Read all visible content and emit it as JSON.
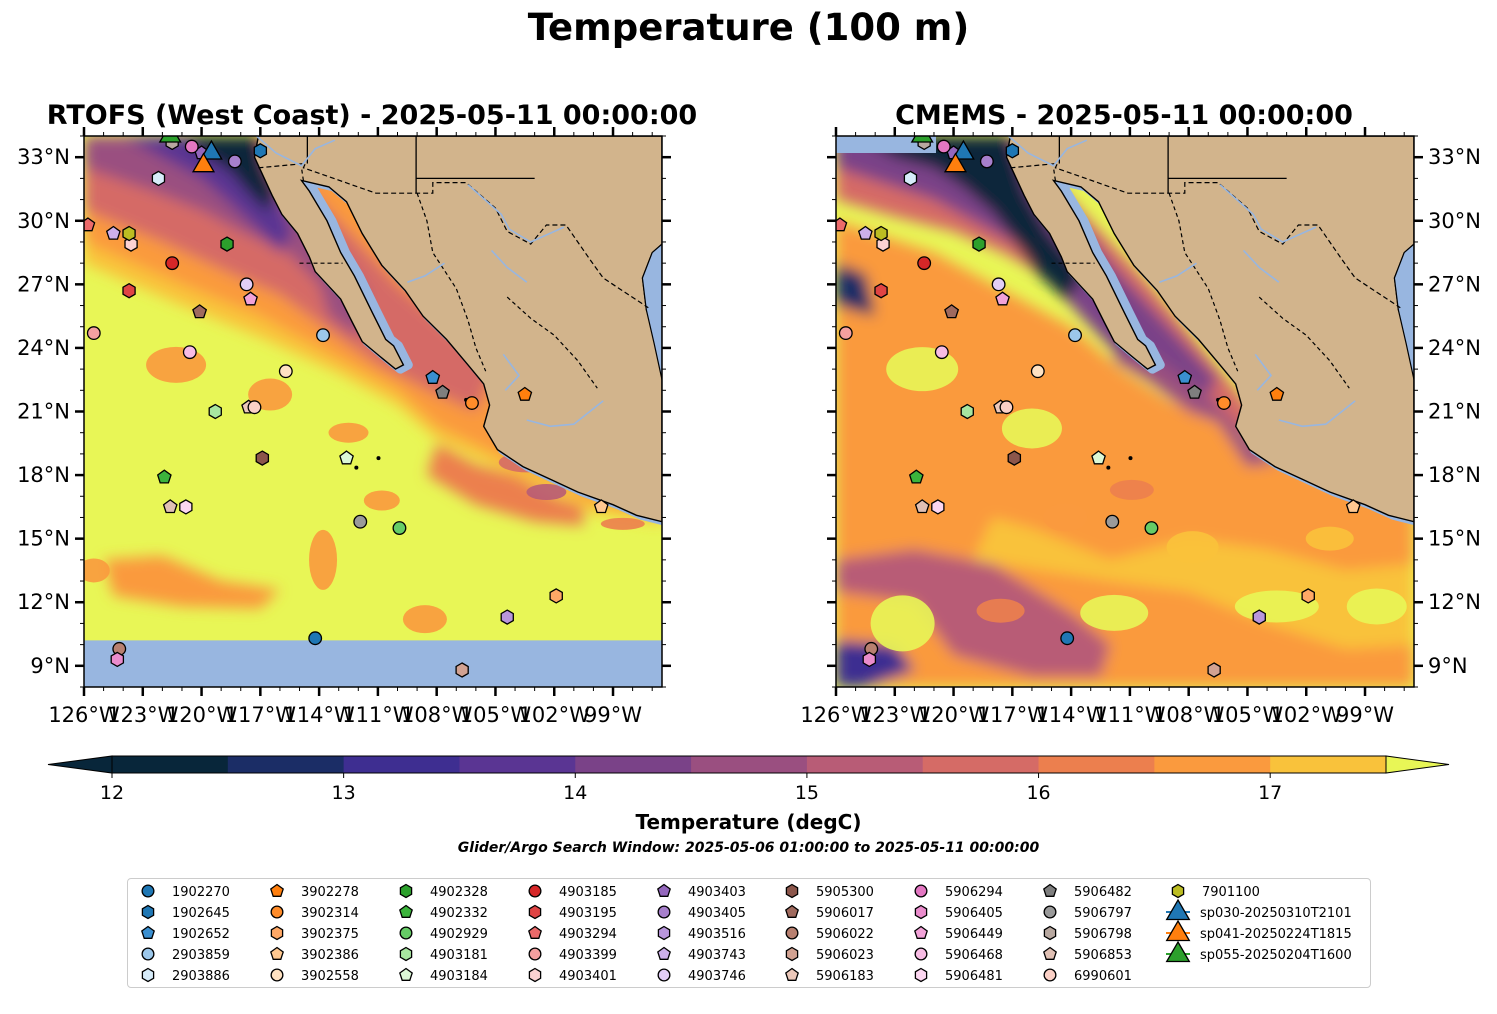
{
  "figure": {
    "suptitle": "Temperature (100 m)",
    "colorbar_label": "Temperature (degC)",
    "search_window": "Glider/Argo Search Window: 2025-05-06 01:00:00 to 2025-05-11 00:00:00"
  },
  "chart_data": [
    {
      "type": "heatmap",
      "title": "RTOFS (West Coast) - 2025-05-11 00:00:00",
      "projection": "map",
      "xlim": [
        -126,
        -96.5
      ],
      "ylim": [
        8,
        34
      ],
      "xticks": [
        "126°W",
        "123°W",
        "120°W",
        "117°W",
        "114°W",
        "111°W",
        "108°W",
        "105°W",
        "102°W",
        "99°W"
      ],
      "yticks": [
        "9°N",
        "12°N",
        "15°N",
        "18°N",
        "21°N",
        "24°N",
        "27°N",
        "30°N",
        "33°N"
      ],
      "land_color": "#d2b48c",
      "no_data_band_color": "#98b6e0",
      "no_data_band_below_lat": 10.2
    },
    {
      "type": "heatmap",
      "title": "CMEMS - 2025-05-11 00:00:00",
      "projection": "map",
      "xlim": [
        -126,
        -96.5
      ],
      "ylim": [
        8,
        34
      ],
      "xticks": [
        "126°W",
        "123°W",
        "120°W",
        "117°W",
        "114°W",
        "111°W",
        "108°W",
        "105°W",
        "102°W",
        "99°W"
      ],
      "yticks": [
        "9°N",
        "12°N",
        "15°N",
        "18°N",
        "21°N",
        "24°N",
        "27°N",
        "30°N",
        "33°N"
      ],
      "land_color": "#d2b48c"
    }
  ],
  "colorbar": {
    "ticks": [
      "12",
      "13",
      "14",
      "15",
      "16",
      "17"
    ],
    "min": 12,
    "max": 17.5,
    "step": 0.5,
    "extend": "both",
    "colors": [
      "#08263a",
      "#1b2d66",
      "#3e2e91",
      "#5a3593",
      "#7a4288",
      "#9a4f80",
      "#b85c76",
      "#d56b66",
      "#ec7f4e",
      "#fa9a3e",
      "#f9c23b",
      "#e8f656"
    ]
  },
  "legend": {
    "columns": [
      [
        [
          "1902270",
          "o",
          "#1f77b4"
        ],
        [
          "1902645",
          "h",
          "#1f77b4"
        ],
        [
          "1902652",
          "p",
          "#3a8fd0"
        ],
        [
          "2903859",
          "o",
          "#9cc7ea"
        ],
        [
          "2903886",
          "h",
          "#d7ecfa"
        ]
      ],
      [
        [
          "3902278",
          "p",
          "#ff7f0e"
        ],
        [
          "3902314",
          "o",
          "#ff8c2a"
        ],
        [
          "3902375",
          "h",
          "#ffa866"
        ],
        [
          "3902386",
          "p",
          "#ffc890"
        ],
        [
          "3902558",
          "o",
          "#ffe2c2"
        ]
      ],
      [
        [
          "4902328",
          "h",
          "#2ca02c"
        ],
        [
          "4902332",
          "p",
          "#3cb43c"
        ],
        [
          "4902929",
          "o",
          "#66cc66"
        ],
        [
          "4903181",
          "h",
          "#a8e6a0"
        ],
        [
          "4903184",
          "p",
          "#dcf8d6"
        ]
      ],
      [
        [
          "4903185",
          "o",
          "#d62728"
        ],
        [
          "4903195",
          "h",
          "#e04444"
        ],
        [
          "4903294",
          "p",
          "#ec6a6a"
        ],
        [
          "4903399",
          "o",
          "#f4a0a0"
        ],
        [
          "4903401",
          "h",
          "#fcd2d2"
        ]
      ],
      [
        [
          "4903403",
          "p",
          "#9467bd"
        ],
        [
          "4903405",
          "o",
          "#a77fcc"
        ],
        [
          "4903516",
          "h",
          "#b996dc"
        ],
        [
          "4903743",
          "p",
          "#cdb0ea"
        ],
        [
          "4903746",
          "o",
          "#e2cdf6"
        ]
      ],
      [
        [
          "5905300",
          "h",
          "#8c564b"
        ],
        [
          "5906017",
          "p",
          "#a06a5e"
        ],
        [
          "5906022",
          "o",
          "#b88070"
        ],
        [
          "5906023",
          "h",
          "#d2a292"
        ],
        [
          "5906183",
          "p",
          "#ecc8ba"
        ]
      ],
      [
        [
          "5906294",
          "o",
          "#e377c2"
        ],
        [
          "5906405",
          "h",
          "#ea8ccc"
        ],
        [
          "5906449",
          "p",
          "#f2a2d8"
        ],
        [
          "5906468",
          "o",
          "#f8bce4"
        ],
        [
          "5906481",
          "h",
          "#fcd6f0"
        ]
      ],
      [
        [
          "5906482",
          "p",
          "#7f7f7f"
        ],
        [
          "5906797",
          "o",
          "#9a9a9a"
        ],
        [
          "5906798",
          "h",
          "#b8a8a0"
        ],
        [
          "5906853",
          "p",
          "#e0c0b4"
        ],
        [
          "6990601",
          "o",
          "#fbd0c6"
        ]
      ],
      [
        [
          "7901100",
          "h",
          "#bcbd22"
        ],
        [
          "sp030-20250310T2101",
          "^",
          "#1f77b4"
        ],
        [
          "sp041-20250224T1815",
          "^",
          "#ff7f0e"
        ],
        [
          "sp055-20250204T1600",
          "^",
          "#2ca02c"
        ]
      ]
    ]
  },
  "platforms": [
    [
      "1902270",
      "o",
      "#1f77b4",
      -114.2,
      10.3
    ],
    [
      "1902645",
      "h",
      "#1f77b4",
      -117.0,
      33.3
    ],
    [
      "1902652",
      "p",
      "#3a8fd0",
      -108.2,
      22.6
    ],
    [
      "2903859",
      "o",
      "#9cc7ea",
      -113.8,
      24.6
    ],
    [
      "2903886",
      "h",
      "#d7ecfa",
      -122.2,
      32.0
    ],
    [
      "3902278",
      "p",
      "#ff7f0e",
      -103.5,
      21.8
    ],
    [
      "3902314",
      "o",
      "#ff8c2a",
      -106.2,
      21.4
    ],
    [
      "3902375",
      "h",
      "#ffa866",
      -101.9,
      12.3
    ],
    [
      "3902386",
      "p",
      "#ffc890",
      -99.6,
      16.5
    ],
    [
      "3902558",
      "o",
      "#ffe2c2",
      -115.7,
      22.9
    ],
    [
      "4902328",
      "h",
      "#2ca02c",
      -118.7,
      28.9
    ],
    [
      "4902332",
      "p",
      "#3cb43c",
      -121.9,
      17.9
    ],
    [
      "4902929",
      "o",
      "#66cc66",
      -109.9,
      15.5
    ],
    [
      "4903181",
      "h",
      "#a8e6a0",
      -119.3,
      21.0
    ],
    [
      "4903184",
      "p",
      "#dcf8d6",
      -112.6,
      18.8
    ],
    [
      "4903185",
      "o",
      "#d62728",
      -121.5,
      28.0
    ],
    [
      "4903195",
      "h",
      "#e04444",
      -123.7,
      26.7
    ],
    [
      "4903294",
      "p",
      "#ec6a6a",
      -125.8,
      29.8
    ],
    [
      "4903399",
      "o",
      "#f4a0a0",
      -125.5,
      24.7
    ],
    [
      "4903401",
      "h",
      "#fcd2d2",
      -123.6,
      28.9
    ],
    [
      "4903403",
      "p",
      "#9467bd",
      -120.0,
      33.2
    ],
    [
      "4903405",
      "o",
      "#a77fcc",
      -118.3,
      32.8
    ],
    [
      "4903516",
      "h",
      "#b996dc",
      -104.4,
      11.3
    ],
    [
      "4903743",
      "p",
      "#cdb0ea",
      -124.5,
      29.4
    ],
    [
      "4903746",
      "o",
      "#e2cdf6",
      -117.7,
      27.0
    ],
    [
      "5905300",
      "h",
      "#8c564b",
      -116.9,
      18.8
    ],
    [
      "5906017",
      "p",
      "#a06a5e",
      -120.1,
      25.7
    ],
    [
      "5906022",
      "o",
      "#b88070",
      -124.2,
      9.8
    ],
    [
      "5906023",
      "h",
      "#d2a292",
      -106.7,
      8.8
    ],
    [
      "5906183",
      "p",
      "#ecc8ba",
      -117.6,
      21.2
    ],
    [
      "5906294",
      "o",
      "#e377c2",
      -120.5,
      33.5
    ],
    [
      "5906405",
      "h",
      "#ea8ccc",
      -124.3,
      9.3
    ],
    [
      "5906449",
      "p",
      "#f2a2d8",
      -117.5,
      26.3
    ],
    [
      "5906468",
      "o",
      "#f8bce4",
      -120.6,
      23.8
    ],
    [
      "5906481",
      "h",
      "#fcd6f0",
      -120.8,
      16.5
    ],
    [
      "5906482",
      "p",
      "#7f7f7f",
      -107.7,
      21.9
    ],
    [
      "5906797",
      "o",
      "#9a9a9a",
      -111.9,
      15.8
    ],
    [
      "5906798",
      "h",
      "#b8a8a0",
      -121.5,
      33.7
    ],
    [
      "5906853",
      "p",
      "#e0c0b4",
      -121.6,
      16.5
    ],
    [
      "6990601",
      "o",
      "#fbd0c6",
      -117.3,
      21.2
    ],
    [
      "7901100",
      "h",
      "#bcbd22",
      -123.7,
      29.4
    ],
    [
      "sp030-20250310T2101",
      "^",
      "#1f77b4",
      -119.5,
      33.2
    ],
    [
      "sp041-20250224T1815",
      "^",
      "#ff7f0e",
      -119.9,
      32.6
    ],
    [
      "sp055-20250204T1600",
      "^",
      "#2ca02c",
      -121.6,
      34.0
    ]
  ]
}
